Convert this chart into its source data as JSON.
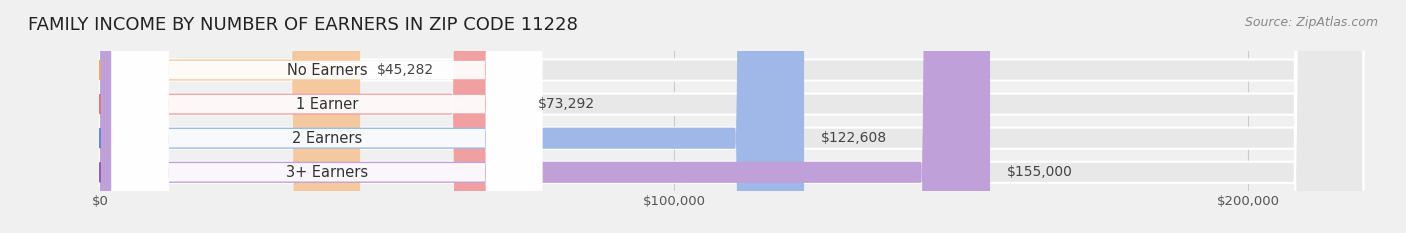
{
  "title": "FAMILY INCOME BY NUMBER OF EARNERS IN ZIP CODE 11228",
  "source": "Source: ZipAtlas.com",
  "categories": [
    "No Earners",
    "1 Earner",
    "2 Earners",
    "3+ Earners"
  ],
  "values": [
    45282,
    73292,
    122608,
    155000
  ],
  "bar_colors": [
    "#f5c9a0",
    "#f0a0a0",
    "#a0b8e8",
    "#c0a0d8"
  ],
  "label_circle_colors": [
    "#e8a870",
    "#e07878",
    "#6888d0",
    "#9060b8"
  ],
  "bar_labels": [
    "$45,282",
    "$73,292",
    "$122,608",
    "$155,000"
  ],
  "x_ticks": [
    0,
    100000,
    200000
  ],
  "x_tick_labels": [
    "$0",
    "$100,000",
    "$200,000"
  ],
  "x_max": 220000,
  "background_color": "#f0f0f0",
  "bar_bg_color": "#e8e8e8",
  "title_fontsize": 13,
  "label_fontsize": 10.5,
  "value_fontsize": 10,
  "source_fontsize": 9
}
